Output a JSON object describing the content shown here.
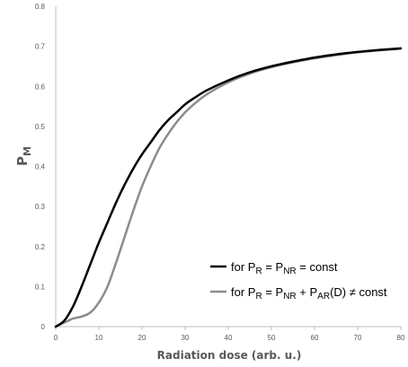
{
  "chart_data": {
    "type": "line",
    "title": "",
    "xlabel": "Radiation dose (arb. u.)",
    "ylabel_main": "P",
    "ylabel_sub": "M",
    "xlim": [
      0,
      80
    ],
    "ylim": [
      0,
      0.8
    ],
    "x_ticks": [
      0,
      10,
      20,
      30,
      40,
      50,
      60,
      70,
      80
    ],
    "y_ticks": [
      0,
      0.1,
      0.2,
      0.3,
      0.4,
      0.5,
      0.6,
      0.7,
      0.8
    ],
    "y_tick_labels": [
      "0",
      "0.1",
      "0.2",
      "0.3",
      "0.4",
      "0.5",
      "0.6",
      "0.7",
      "0.8"
    ],
    "grid": false,
    "legend_position": "bottom-right",
    "x": [
      0,
      2,
      4,
      6,
      8,
      10,
      12,
      14,
      16,
      18,
      20,
      22,
      24,
      26,
      28,
      30,
      32,
      35,
      40,
      45,
      50,
      55,
      60,
      65,
      70,
      75,
      80
    ],
    "series": [
      {
        "color": "#000000",
        "legend_parts": [
          "for P",
          "R",
          " = P",
          "NR",
          " = const"
        ],
        "values": [
          0.0,
          0.015,
          0.05,
          0.1,
          0.155,
          0.21,
          0.26,
          0.31,
          0.355,
          0.395,
          0.43,
          0.46,
          0.49,
          0.515,
          0.535,
          0.555,
          0.57,
          0.59,
          0.615,
          0.635,
          0.65,
          0.662,
          0.672,
          0.68,
          0.686,
          0.691,
          0.695
        ]
      },
      {
        "color": "#8c8c8c",
        "legend_parts": [
          "for P",
          "R",
          " = P",
          "NR",
          " + P",
          "AR",
          "(D) ≠ const"
        ],
        "values": [
          0.0,
          0.01,
          0.02,
          0.025,
          0.035,
          0.06,
          0.1,
          0.16,
          0.225,
          0.29,
          0.35,
          0.4,
          0.445,
          0.48,
          0.51,
          0.535,
          0.555,
          0.58,
          0.61,
          0.632,
          0.648,
          0.66,
          0.67,
          0.678,
          0.685,
          0.69,
          0.694
        ]
      }
    ]
  }
}
